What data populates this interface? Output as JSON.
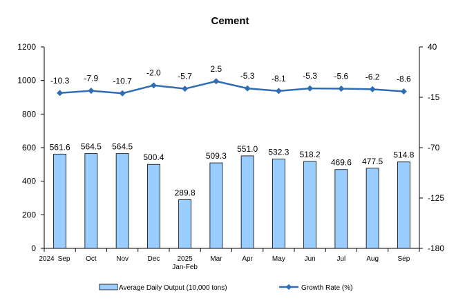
{
  "chart_data": {
    "type": "bar",
    "title": "Cement",
    "categories": [
      [
        "2024",
        "Sep"
      ],
      [
        "Oct"
      ],
      [
        "Nov"
      ],
      [
        "Dec"
      ],
      [
        "2025",
        "Jan-Feb"
      ],
      [
        "Mar"
      ],
      [
        "Apr"
      ],
      [
        "May"
      ],
      [
        "Jun"
      ],
      [
        "Jul"
      ],
      [
        "Aug"
      ],
      [
        "Sep"
      ]
    ],
    "series": [
      {
        "name": "Average Daily Output (10,000 tons)",
        "kind": "bar",
        "axis": "left",
        "color": "#99CCFF",
        "values": [
          561.6,
          564.5,
          564.5,
          500.4,
          289.8,
          509.3,
          551.0,
          532.3,
          518.2,
          469.6,
          477.5,
          514.8
        ],
        "labels": [
          "561.6",
          "564.5",
          "564.5",
          "500.4",
          "289.8",
          "509.3",
          "551.0",
          "532.3",
          "518.2",
          "469.6",
          "477.5",
          "514.8"
        ]
      },
      {
        "name": "Growth Rate (%)",
        "kind": "line",
        "axis": "right",
        "color": "#2E6DB4",
        "values": [
          -10.3,
          -7.9,
          -10.7,
          -2.0,
          -5.7,
          2.5,
          -5.3,
          -8.1,
          -5.3,
          -5.6,
          -6.2,
          -8.6
        ],
        "labels": [
          "-10.3",
          "-7.9",
          "-10.7",
          "-2.0",
          "-5.7",
          "2.5",
          "-5.3",
          "-8.1",
          "-5.3",
          "-5.6",
          "-6.2",
          "-8.6"
        ]
      }
    ],
    "y_left": {
      "min": 0,
      "max": 1200,
      "ticks": [
        0,
        200,
        400,
        600,
        800,
        1000,
        1200
      ]
    },
    "y_right": {
      "min": -180,
      "max": 40,
      "ticks": [
        -180,
        -125,
        -70,
        -15,
        40
      ]
    },
    "legend": {
      "position": "bottom",
      "items": [
        "Average Daily Output (10,000 tons)",
        "Growth Rate (%)"
      ]
    },
    "grid": false
  }
}
